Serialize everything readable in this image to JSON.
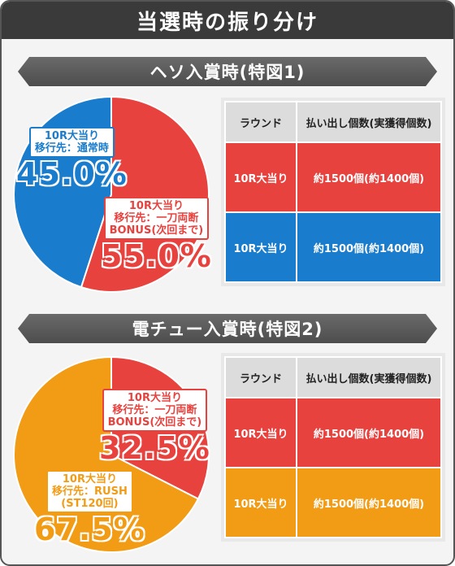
{
  "title": "当選時の振り分け",
  "colors": {
    "blue": "#1a7ccc",
    "red": "#e8423f",
    "orange": "#f29b14"
  },
  "sections": [
    {
      "heading": "ヘソ入賞時(特図1)",
      "pie": {
        "slices": [
          {
            "line1": "10R大当り",
            "line2": "移行先：通常時",
            "line3": "",
            "percent_label": "45.0%",
            "percent": 45.0,
            "color": "#1a7ccc"
          },
          {
            "line1": "10R大当り",
            "line2": "移行先：一刀両断",
            "line3": "BONUS(次回まで)",
            "percent_label": "55.0%",
            "percent": 55.0,
            "color": "#e8423f"
          }
        ]
      },
      "table": {
        "headers": [
          "ラウンド",
          "払い出し個数(実獲得個数)"
        ],
        "rows": [
          {
            "round": "10R大当り",
            "payout": "約1500個(約1400個)",
            "color": "red"
          },
          {
            "round": "10R大当り",
            "payout": "約1500個(約1400個)",
            "color": "blue"
          }
        ]
      }
    },
    {
      "heading": "電チュー入賞時(特図2)",
      "pie": {
        "slices": [
          {
            "line1": "10R大当り",
            "line2": "移行先：一刀両断",
            "line3": "BONUS(次回まで)",
            "percent_label": "32.5%",
            "percent": 32.5,
            "color": "#e8423f"
          },
          {
            "line1": "10R大当り",
            "line2": "移行先：RUSH",
            "line3": "(ST120回)",
            "percent_label": "67.5%",
            "percent": 67.5,
            "color": "#f29b14"
          }
        ]
      },
      "table": {
        "headers": [
          "ラウンド",
          "払い出し個数(実獲得個数)"
        ],
        "rows": [
          {
            "round": "10R大当り",
            "payout": "約1500個(約1400個)",
            "color": "red"
          },
          {
            "round": "10R大当り",
            "payout": "約1500個(約1400個)",
            "color": "orange"
          }
        ]
      }
    }
  ],
  "chart_data": [
    {
      "type": "pie",
      "title": "ヘソ入賞時(特図1)",
      "labels": [
        "10R大当り 移行先：通常時",
        "10R大当り 移行先：一刀両断 BONUS(次回まで)"
      ],
      "values": [
        45.0,
        55.0
      ]
    },
    {
      "type": "pie",
      "title": "電チュー入賞時(特図2)",
      "labels": [
        "10R大当り 移行先：一刀両断 BONUS(次回まで)",
        "10R大当り 移行先：RUSH (ST120回)"
      ],
      "values": [
        32.5,
        67.5
      ]
    }
  ]
}
